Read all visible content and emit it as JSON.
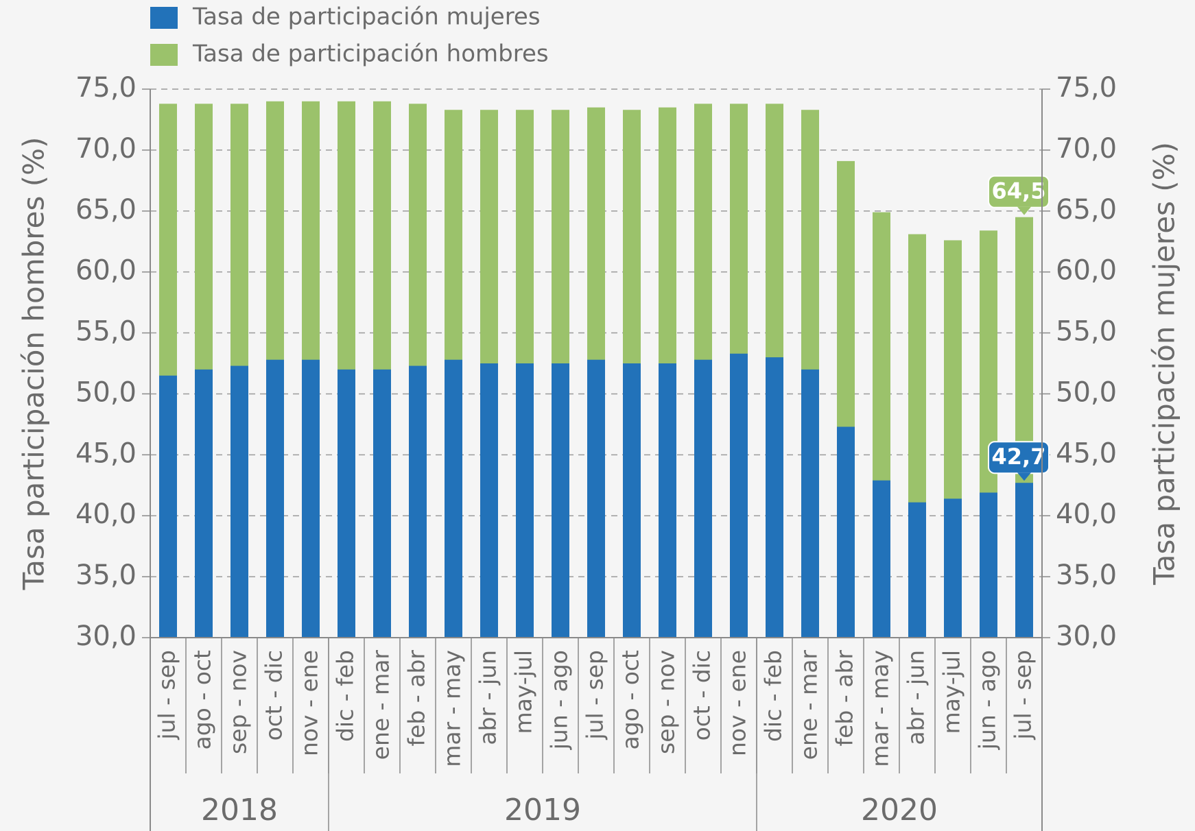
{
  "chart_data": {
    "type": "bar",
    "y_label": "Tasa participación hombres (%)",
    "y2_label": "Tasa participación mujeres (%)",
    "categories": [
      "jul - sep",
      "ago - oct",
      "sep - nov",
      "oct - dic",
      "nov - ene",
      "dic - feb",
      "ene - mar",
      "feb - abr",
      "mar - may",
      "abr - jun",
      "may-jul",
      "jun - ago",
      "jul - sep",
      "ago - oct",
      "sep - nov",
      "oct - dic",
      "nov - ene",
      "dic - feb",
      "ene - mar",
      "feb - abr",
      "mar - may",
      "abr - jun",
      "may-jul",
      "jun - ago",
      "jul - sep"
    ],
    "category_groups": [
      {
        "name": "2018",
        "size": 5
      },
      {
        "name": "2019",
        "size": 12
      },
      {
        "name": "2020",
        "size": 8
      }
    ],
    "series": [
      {
        "name": "Tasa de participación hombres",
        "color": "#9bc26b",
        "values": [
          73.8,
          73.8,
          73.8,
          74.0,
          74.0,
          74.0,
          74.0,
          73.8,
          73.3,
          73.3,
          73.3,
          73.3,
          73.5,
          73.3,
          73.5,
          73.8,
          73.8,
          73.8,
          73.3,
          69.1,
          64.9,
          63.1,
          62.6,
          63.4,
          64.5
        ],
        "value_labels": [
          null,
          null,
          null,
          null,
          null,
          null,
          null,
          null,
          null,
          null,
          null,
          null,
          null,
          null,
          null,
          null,
          null,
          null,
          null,
          null,
          null,
          null,
          null,
          null,
          "64,5"
        ]
      },
      {
        "name": "Tasa de participación mujeres",
        "color": "#2272b9",
        "axis": "y2",
        "values": [
          51.5,
          52.0,
          52.3,
          52.8,
          52.8,
          52.0,
          52.0,
          52.3,
          52.8,
          52.5,
          52.5,
          52.5,
          52.8,
          52.5,
          52.5,
          52.8,
          53.3,
          53.0,
          52.0,
          47.3,
          42.9,
          41.1,
          41.4,
          41.9,
          42.7
        ],
        "value_labels": [
          null,
          null,
          null,
          null,
          null,
          null,
          null,
          null,
          null,
          null,
          null,
          null,
          null,
          null,
          null,
          null,
          null,
          null,
          null,
          null,
          null,
          null,
          null,
          null,
          "42,7"
        ]
      }
    ],
    "legend_order": [
      1,
      0
    ],
    "ylim": [
      30,
      75
    ],
    "yticks": [
      {
        "value": 30,
        "label": "30,0"
      },
      {
        "value": 35,
        "label": "35,0"
      },
      {
        "value": 40,
        "label": "40,0"
      },
      {
        "value": 45,
        "label": "45,0"
      },
      {
        "value": 50,
        "label": "50,0"
      },
      {
        "value": 55,
        "label": "55,0"
      },
      {
        "value": 60,
        "label": "60,0"
      },
      {
        "value": 65,
        "label": "65,0"
      },
      {
        "value": 70,
        "label": "70,0"
      },
      {
        "value": 75,
        "label": "75,0"
      }
    ],
    "y2lim": [
      30,
      75
    ],
    "y2ticks": [
      {
        "value": 30,
        "label": "30,0"
      },
      {
        "value": 35,
        "label": "35,0"
      },
      {
        "value": 40,
        "label": "40,0"
      },
      {
        "value": 45,
        "label": "45,0"
      },
      {
        "value": 50,
        "label": "50,0"
      },
      {
        "value": 55,
        "label": "55,0"
      },
      {
        "value": 60,
        "label": "60,0"
      },
      {
        "value": 65,
        "label": "65,0"
      },
      {
        "value": 70,
        "label": "70,0"
      },
      {
        "value": 75,
        "label": "75,0"
      }
    ],
    "grid": true,
    "legend": "top-left"
  }
}
